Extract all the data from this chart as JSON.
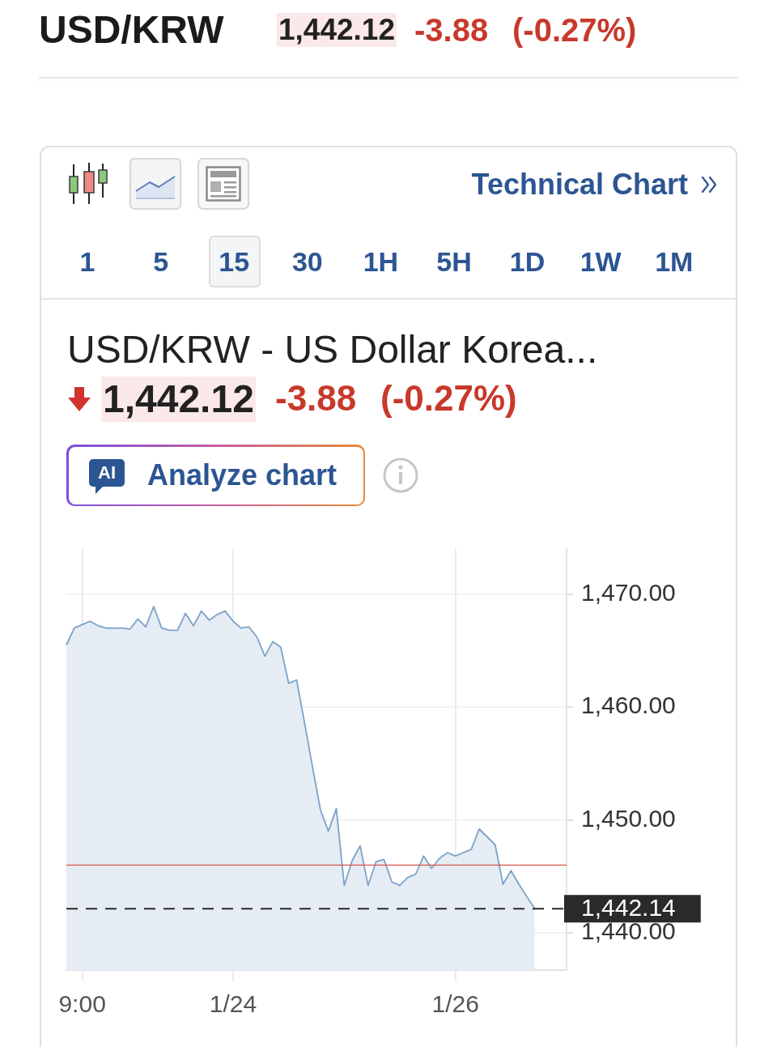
{
  "chart_data": {
    "type": "area",
    "title": "USD/KRW - US Dollar Korea...",
    "annotations": [
      "USD/KRW",
      "1,442.12",
      "-3.88",
      "(-0.27%)",
      "Technical Chart",
      "1 5 15 30 1H 5H 1D 1W 1M",
      "1,442.12",
      "-3.88",
      "(-0.27%)",
      "AI",
      "Analyze chart"
    ],
    "categories": [
      null,
      null,
      "9:00",
      null,
      null,
      null,
      null,
      null,
      null,
      null,
      null,
      null,
      null,
      null,
      null,
      null,
      null,
      null,
      null,
      null,
      null,
      "1/24",
      null,
      null,
      null,
      null,
      null,
      null,
      null,
      null,
      null,
      null,
      null,
      null,
      null,
      null,
      null,
      null,
      null,
      null,
      null,
      null,
      null,
      null,
      null,
      null,
      null,
      null,
      null,
      "1/26",
      null,
      null,
      null,
      null,
      null,
      null,
      null,
      null,
      null,
      null,
      null,
      null,
      null,
      null
    ],
    "values": [
      1465.5,
      1467.0,
      1467.3,
      1467.6,
      1467.2,
      1467.0,
      1467.0,
      1467.0,
      1466.9,
      1467.8,
      1467.1,
      1468.9,
      1467.0,
      1466.8,
      1466.8,
      1468.3,
      1467.2,
      1468.5,
      1467.7,
      1468.2,
      1468.5,
      1467.6,
      1467.0,
      1467.1,
      1466.2,
      1464.5,
      1465.8,
      1465.3,
      1462.1,
      1462.4,
      1458.6,
      1454.7,
      1450.9,
      1449.0,
      1451.0,
      1444.2,
      1446.4,
      1447.7,
      1444.2,
      1446.3,
      1446.5,
      1444.5,
      1444.2,
      1444.9,
      1445.2,
      1446.8,
      1445.7,
      1446.6,
      1447.1,
      1446.8,
      1447.1,
      1447.4,
      1449.2,
      1448.5,
      1447.8,
      1444.3,
      1445.5,
      1444.3,
      1443.2,
      1442.14,
      null,
      null,
      null,
      null
    ],
    "color": "#7ba2c9",
    "ylim": [
      1436.7,
      1474
    ],
    "yticks": [
      {
        "value": 1440,
        "label": "1,440.00"
      },
      {
        "value": 1450,
        "label": "1,450.00"
      },
      {
        "value": 1460,
        "label": "1,460.00"
      },
      {
        "value": 1470,
        "label": "1,470.00"
      }
    ],
    "grid": true,
    "ref_lines": [
      {
        "axis": "y",
        "value": 1446,
        "color": "#d9534f"
      },
      {
        "axis": "y",
        "value": 1442.14,
        "label": "1,442.14",
        "color": "#2a2a2a",
        "line_style": "dashed"
      }
    ]
  }
}
